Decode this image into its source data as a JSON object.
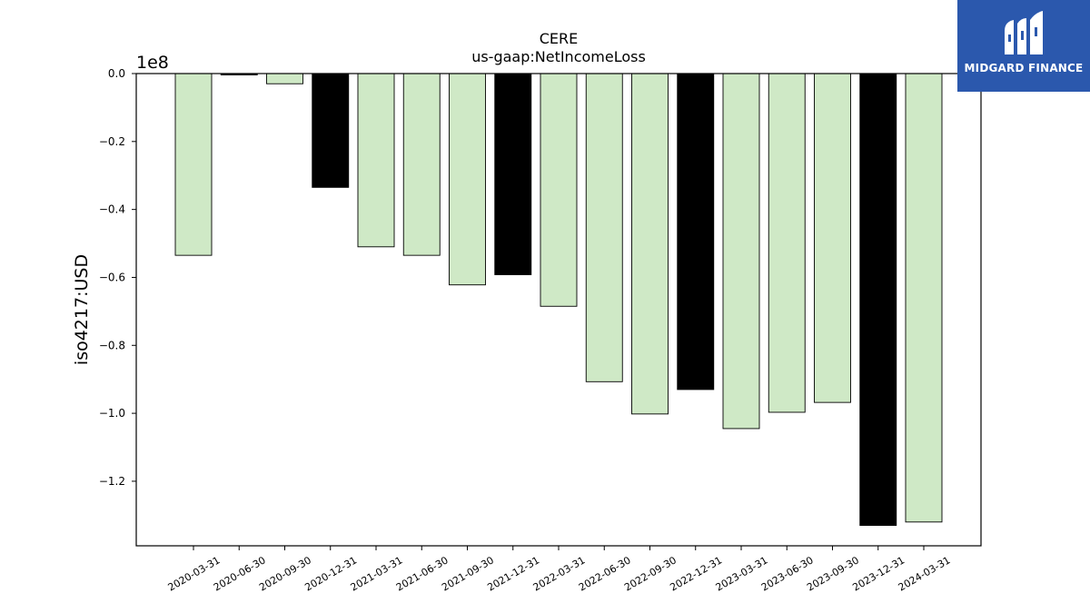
{
  "logo": {
    "text": "MIDGARD FINANCE"
  },
  "chart_data": {
    "type": "bar",
    "title": "CERE",
    "subtitle": "us-gaap:NetIncomeLoss",
    "xlabel": "",
    "ylabel": "iso4217:USD",
    "y_scale_label": "1e8",
    "ylim": [
      -1.39,
      0.0
    ],
    "yticks": [
      0.0,
      -0.2,
      -0.4,
      -0.6,
      -0.8,
      -1.0,
      -1.2
    ],
    "ytick_labels": [
      "0.0",
      "−0.2",
      "−0.4",
      "−0.6",
      "−0.8",
      "−1.0",
      "−1.2"
    ],
    "categories": [
      "2020-03-31",
      "2020-06-30",
      "2020-09-30",
      "2020-12-31",
      "2021-03-31",
      "2021-06-30",
      "2021-09-30",
      "2021-12-31",
      "2022-03-31",
      "2022-06-30",
      "2022-09-30",
      "2022-12-31",
      "2023-03-31",
      "2023-06-30",
      "2023-09-30",
      "2023-12-31",
      "2024-03-31"
    ],
    "values": [
      -0.535,
      -0.004,
      -0.03,
      -0.335,
      -0.51,
      -0.535,
      -0.622,
      -0.592,
      -0.685,
      -0.907,
      -1.002,
      -0.93,
      -1.045,
      -0.997,
      -0.968,
      -1.33,
      -1.32
    ],
    "highlight": [
      false,
      true,
      false,
      true,
      false,
      false,
      false,
      true,
      false,
      false,
      false,
      true,
      false,
      false,
      false,
      true,
      false
    ],
    "colors": {
      "normal": "#cfe9c6",
      "highlight": "#000000",
      "edge": "#000000"
    },
    "grid": false,
    "legend": "none"
  }
}
